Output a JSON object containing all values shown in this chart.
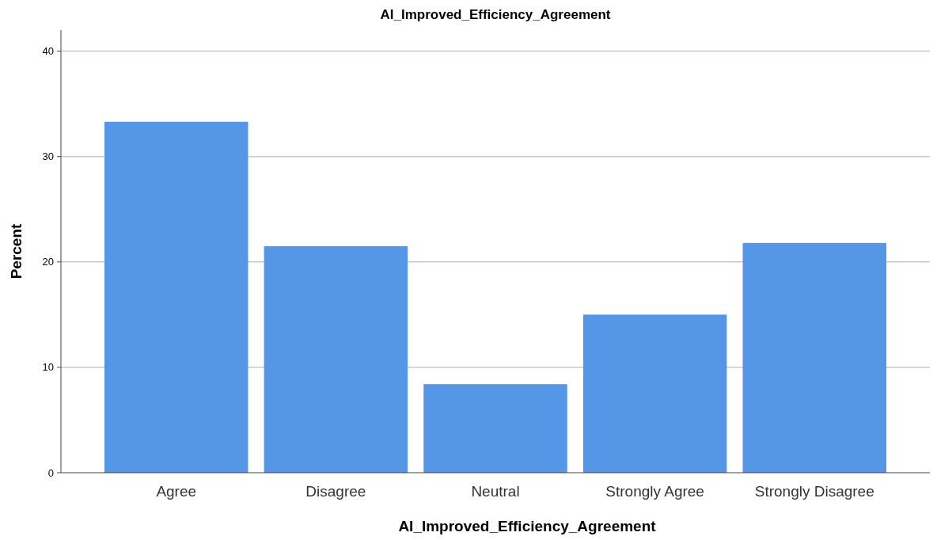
{
  "chart_data": {
    "type": "bar",
    "title": "AI_Improved_Efficiency_Agreement",
    "xlabel": "AI_Improved_Efficiency_Agreement",
    "ylabel": "Percent",
    "categories": [
      "Agree",
      "Disagree",
      "Neutral",
      "Strongly Agree",
      "Strongly Disagree"
    ],
    "values": [
      33.3,
      21.5,
      8.4,
      15.0,
      21.8
    ],
    "color": "#5596e6",
    "ylim": [
      0,
      42
    ],
    "yticks": [
      0,
      10,
      20,
      30,
      40
    ],
    "grid": "y"
  }
}
